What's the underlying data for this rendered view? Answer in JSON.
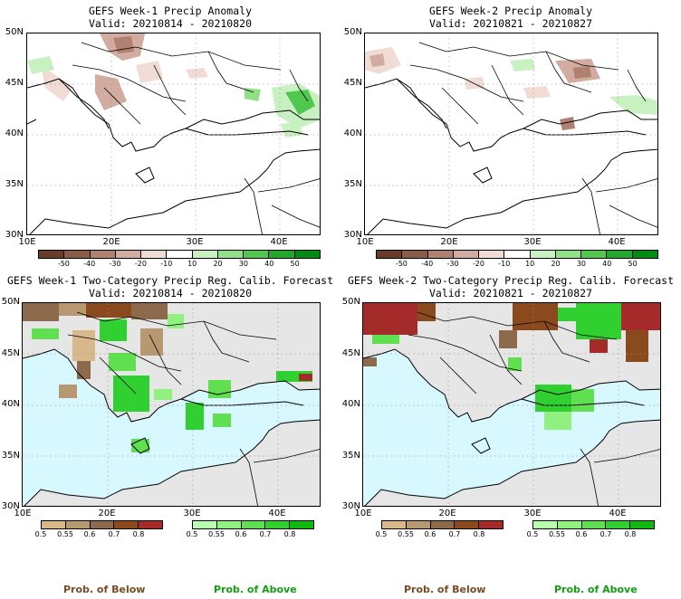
{
  "panels": [
    {
      "title1": "GEFS Week-1 Precip Anomaly",
      "title2": "Valid: 20210814 - 20210820"
    },
    {
      "title1": "GEFS Week-2 Precip Anomaly",
      "title2": "Valid: 20210821 - 20210827"
    },
    {
      "title1": "GEFS Week-1 Two-Category Precip Reg. Calib. Forecast",
      "title2": "Valid: 20210814 - 20210820"
    },
    {
      "title1": "GEFS Week-2 Two-Category Precip Reg. Calib. Forecast",
      "title2": "Valid: 20210821 - 20210827"
    }
  ],
  "lat_labels": [
    "50N",
    "45N",
    "40N",
    "35N",
    "30N"
  ],
  "lon_labels": [
    "10E",
    "20E",
    "30E",
    "40E"
  ],
  "anomaly_scale": {
    "labels": [
      "-50",
      "-40",
      "-30",
      "-20",
      "-10",
      "10",
      "20",
      "30",
      "40",
      "50"
    ],
    "colors": [
      "#6b3a2a",
      "#8e5a48",
      "#b08070",
      "#d2aca0",
      "#f0dcd4",
      "#ffffff",
      "#c8f0c0",
      "#90e088",
      "#50c850",
      "#20a828",
      "#008c10"
    ]
  },
  "below_scale": {
    "labels": [
      "0.5",
      "0.55",
      "0.6",
      "0.7",
      "0.8"
    ],
    "colors": [
      "#d8b88a",
      "#b89870",
      "#8e6a4c",
      "#8b4a1e",
      "#a52a2a"
    ]
  },
  "above_scale": {
    "labels": [
      "0.5",
      "0.55",
      "0.6",
      "0.7",
      "0.8"
    ],
    "colors": [
      "#b8ffb0",
      "#90f080",
      "#60e050",
      "#30d030",
      "#10b810"
    ]
  },
  "legend": {
    "below": "Prob. of Below",
    "above": "Prob. of Above"
  },
  "colors": {
    "sea": "#d8f8ff",
    "land_gray": "#e6e6e6",
    "below_text": "#7a4a20",
    "above_text": "#10a010"
  }
}
